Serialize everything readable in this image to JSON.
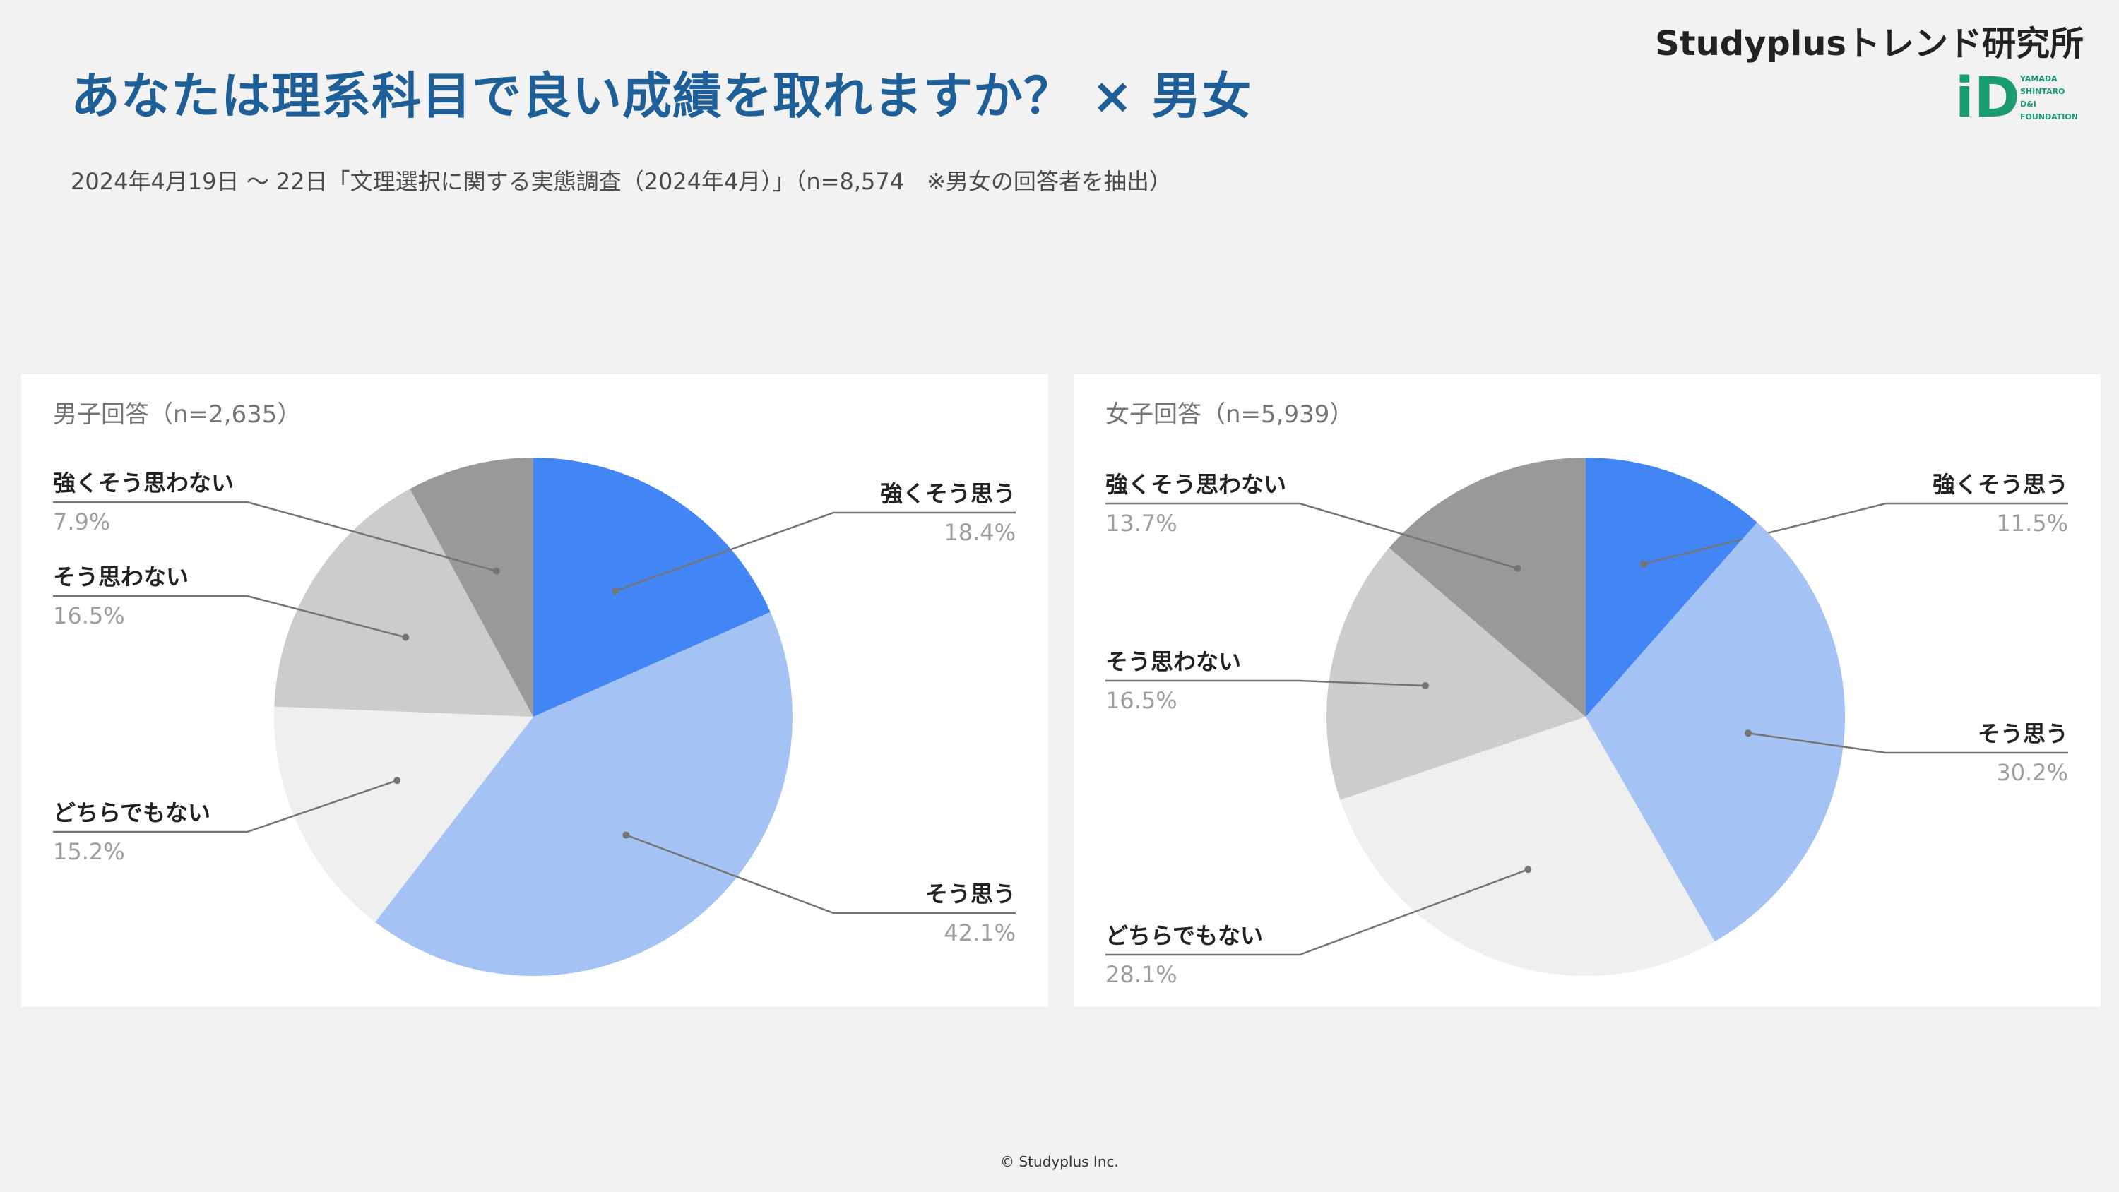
{
  "header": {
    "title": "あなたは理系科目で良い成績を取れますか？ × 男女",
    "subtitle": "2024年4月19日 〜 22日「文理選択に関する実態調査（2024年4月）」（n=8,574　※男女の回答者を抽出）",
    "brand": "Studyplusトレンド研究所",
    "logo_lines": [
      "YAMADA",
      "SHINTARO",
      "D&I",
      "FOUNDATION"
    ],
    "logo_mark": "iD"
  },
  "footer": {
    "copyright": "© Studyplus Inc."
  },
  "colors": {
    "title": "#1f5f98",
    "strongly_agree": "#4285f4",
    "agree": "#a4c2f4",
    "neutral": "#efefef",
    "disagree": "#cccccc",
    "strongly_disagree": "#999999",
    "logo": "#1a9b6e"
  },
  "chart_data": [
    {
      "type": "pie",
      "title": "男子回答（n=2,635）",
      "slices": [
        {
          "label": "強くそう思う",
          "value": 18.4,
          "display": "18.4%",
          "color": "#4285f4"
        },
        {
          "label": "そう思う",
          "value": 42.1,
          "display": "42.1%",
          "color": "#a4c2f4"
        },
        {
          "label": "どちらでもない",
          "value": 15.2,
          "display": "15.2%",
          "color": "#efefef"
        },
        {
          "label": "そう思わない",
          "value": 16.5,
          "display": "16.5%",
          "color": "#cccccc"
        },
        {
          "label": "強くそう思わない",
          "value": 7.9,
          "display": "7.9%",
          "color": "#999999"
        }
      ]
    },
    {
      "type": "pie",
      "title": "女子回答（n=5,939）",
      "slices": [
        {
          "label": "強くそう思う",
          "value": 11.5,
          "display": "11.5%",
          "color": "#4285f4"
        },
        {
          "label": "そう思う",
          "value": 30.2,
          "display": "30.2%",
          "color": "#a4c2f4"
        },
        {
          "label": "どちらでもない",
          "value": 28.1,
          "display": "28.1%",
          "color": "#efefef"
        },
        {
          "label": "そう思わない",
          "value": 16.5,
          "display": "16.5%",
          "color": "#cccccc"
        },
        {
          "label": "強くそう思わない",
          "value": 13.7,
          "display": "13.7%",
          "color": "#999999"
        }
      ]
    }
  ]
}
